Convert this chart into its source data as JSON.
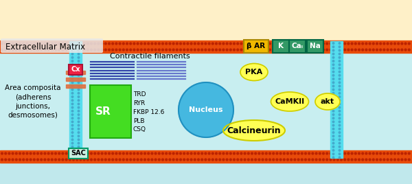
{
  "bg_top": "#FEF0C8",
  "bg_cell": "#C8EEF0",
  "bg_bottom": "#C0E8EC",
  "membrane_color": "#E84B0A",
  "ecm_label": "Extracellular Matrix",
  "area_composita_label": "Area composita\n(adherens\njunctions,\ndesmosomes)",
  "contractile_label": "Contractile filaments",
  "nucleus_label": "Nucleus",
  "nucleus_color": "#45B8E0",
  "nucleus_border": "#2090C0",
  "sr_label": "SR",
  "sr_color": "#44DD22",
  "sr_border": "#22AA11",
  "sr_text": "TRD\nRYR\nFKBP 12.6\nPLB\nCSQ",
  "cx_label": "Cx",
  "cx_bg": "#EE2244",
  "cx_border": "#AA1133",
  "sac_label": "SAC",
  "sac_bg": "#C8F0E0",
  "sac_border": "#009966",
  "beta_ar_label": "β AR",
  "beta_ar_bg": "#F0B800",
  "beta_ar_border": "#AA8800",
  "k_label": "K",
  "cal_label": "Caₗ",
  "na_label": "Na",
  "channel_bg": "#339966",
  "channel_border": "#006644",
  "pka_label": "PKA",
  "camkii_label": "CaMKII",
  "akt_label": "akt",
  "calcineurin_label": "Calcineurin",
  "yellow_fill": "#FFFF55",
  "yellow_border": "#CCCC00",
  "stripe_blue": "#3344AA",
  "stripe_blue2": "#6677CC",
  "connector_color": "#E07040",
  "vmem_color": "#55DDEE",
  "vmem_dot": "#44AACC",
  "figsize": [
    6.0,
    2.68
  ],
  "dpi": 100
}
